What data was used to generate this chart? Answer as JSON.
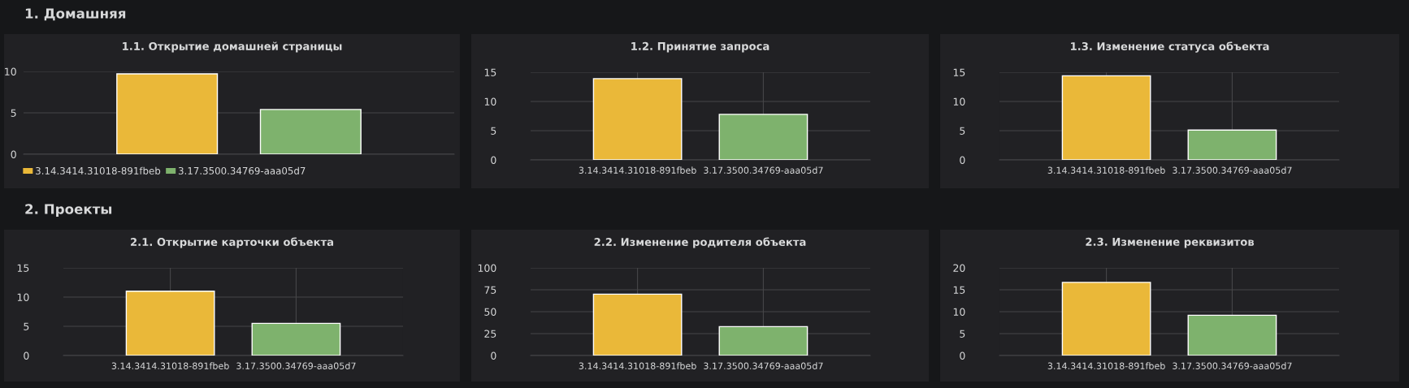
{
  "chart_data": [
    {
      "type": "bar",
      "title": "1.1. Открытие домашней страницы",
      "annotations": [
        "1. Домашняя"
      ],
      "categories": [
        null
      ],
      "series": [
        {
          "name": "3.14.3414.31018-891fbeb",
          "color": "#eab839",
          "values": [
            9.7
          ]
        },
        {
          "name": "3.17.3500.34769-aaa05d7",
          "color": "#7eb26d",
          "values": [
            5.4
          ]
        }
      ],
      "ylim": [
        0,
        10
      ],
      "yticks": [
        0,
        5,
        10
      ],
      "grid": "y",
      "legend": "bottom"
    },
    {
      "type": "bar",
      "title": "1.2. Принятие запроса",
      "categories": [
        "3.14.3414.31018-891fbeb",
        "3.17.3500.34769-aaa05d7"
      ],
      "values": [
        13.9,
        7.8
      ],
      "colors": [
        "#eab839",
        "#7eb26d"
      ],
      "ylim": [
        0,
        15
      ],
      "yticks": [
        0,
        5,
        10,
        15
      ],
      "grid": true
    },
    {
      "type": "bar",
      "title": "1.3. Изменение статуса объекта",
      "categories": [
        "3.14.3414.31018-891fbeb",
        "3.17.3500.34769-aaa05d7"
      ],
      "values": [
        14.4,
        5.1
      ],
      "colors": [
        "#eab839",
        "#7eb26d"
      ],
      "ylim": [
        0,
        15
      ],
      "yticks": [
        0,
        5,
        10,
        15
      ],
      "grid": true
    },
    {
      "type": "bar",
      "title": "2.1. Открытие карточки объекта",
      "annotations": [
        "2. Проекты"
      ],
      "categories": [
        "3.14.3414.31018-891fbeb",
        "3.17.3500.34769-aaa05d7"
      ],
      "values": [
        11.0,
        5.5
      ],
      "colors": [
        "#eab839",
        "#7eb26d"
      ],
      "ylim": [
        0,
        15
      ],
      "yticks": [
        0,
        5,
        10,
        15
      ],
      "grid": true
    },
    {
      "type": "bar",
      "title": "2.2. Изменение родителя объекта",
      "categories": [
        "3.14.3414.31018-891fbeb",
        "3.17.3500.34769-aaa05d7"
      ],
      "values": [
        70,
        33
      ],
      "colors": [
        "#eab839",
        "#7eb26d"
      ],
      "ylim": [
        0,
        100
      ],
      "yticks": [
        0,
        25,
        50,
        75,
        100
      ],
      "grid": true
    },
    {
      "type": "bar",
      "title": "2.3. Изменение реквизитов",
      "categories": [
        "3.14.3414.31018-891fbeb",
        "3.17.3500.34769-aaa05d7"
      ],
      "values": [
        16.7,
        9.2
      ],
      "colors": [
        "#eab839",
        "#7eb26d"
      ],
      "ylim": [
        0,
        20
      ],
      "yticks": [
        0,
        5,
        10,
        15,
        20
      ],
      "grid": true
    }
  ]
}
